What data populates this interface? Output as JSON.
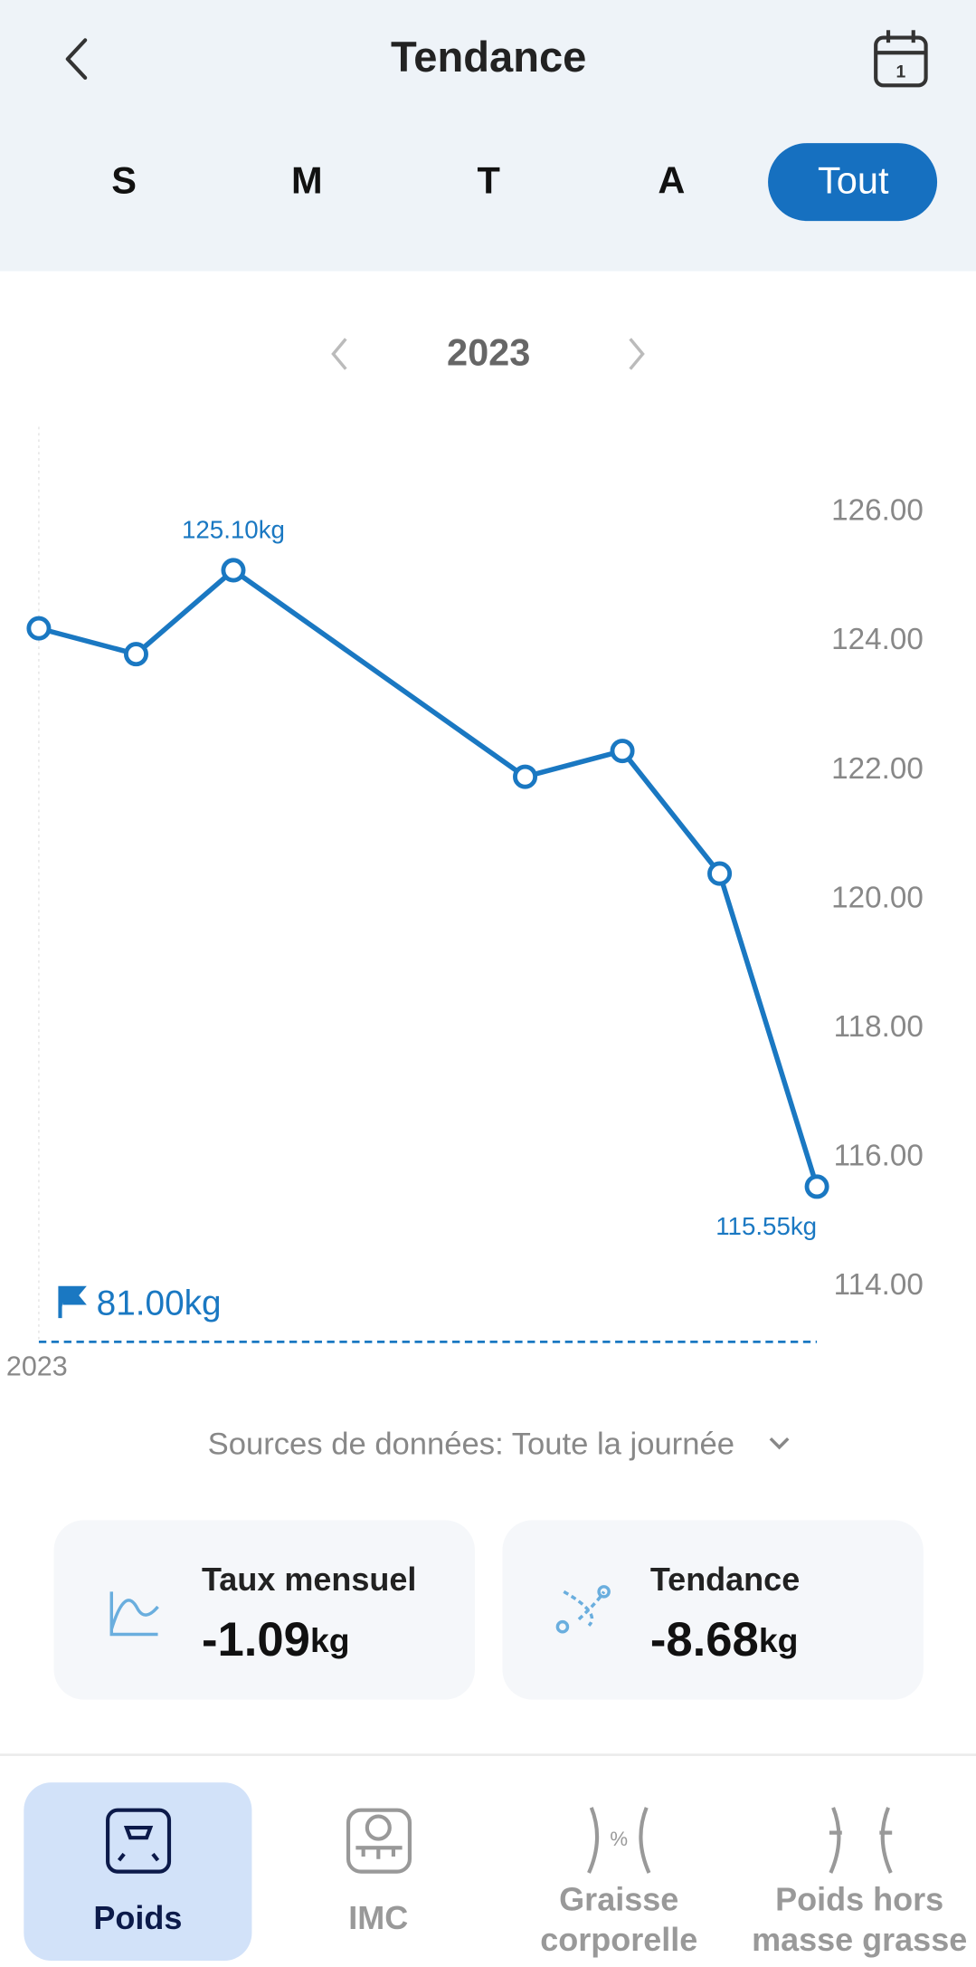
{
  "header": {
    "title": "Tendance"
  },
  "tabs": [
    "S",
    "M",
    "T",
    "A",
    "Tout"
  ],
  "year": "2023",
  "chart_data": {
    "type": "line",
    "x": [
      0,
      1,
      2,
      5,
      6,
      7,
      8
    ],
    "values": [
      124.2,
      123.8,
      125.1,
      121.9,
      122.3,
      120.4,
      115.55
    ],
    "value_labels": [
      null,
      null,
      "125.10kg",
      null,
      null,
      null,
      "115.55kg"
    ],
    "color": "#1a78c2",
    "xlim": [
      0,
      8
    ],
    "xticks": [
      {
        "value": 0,
        "label": "2023"
      }
    ],
    "ylim": [
      114,
      126
    ],
    "yticks": [
      {
        "value": 114,
        "label": "114.00"
      },
      {
        "value": 116,
        "label": "116.00"
      },
      {
        "value": 118,
        "label": "118.00"
      },
      {
        "value": 120,
        "label": "120.00"
      },
      {
        "value": 122,
        "label": "122.00"
      },
      {
        "value": 124,
        "label": "124.00"
      },
      {
        "value": 126,
        "label": "126.00"
      }
    ],
    "goal": {
      "value": 81,
      "label": "81.00kg"
    }
  },
  "sources": "Sources de données: Toute la journée",
  "cards": [
    {
      "title": "Taux mensuel",
      "value": "-1.09",
      "unit": "kg"
    },
    {
      "title": "Tendance",
      "value": "-8.68",
      "unit": "kg"
    }
  ],
  "nav": [
    {
      "label": [
        "Poids"
      ]
    },
    {
      "label": [
        "IMC"
      ]
    },
    {
      "label": [
        "Graisse",
        "corporelle"
      ]
    },
    {
      "label": [
        "Poids hors",
        "masse grasse"
      ]
    }
  ]
}
